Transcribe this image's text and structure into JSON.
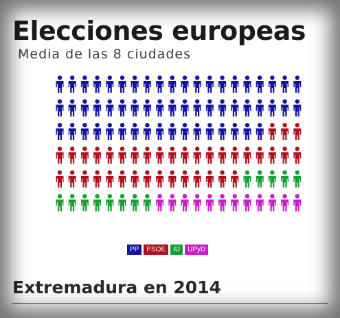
{
  "header": {
    "title": "Elecciones europeas",
    "subtitle": "Media de las 8 ciudades"
  },
  "footer": {
    "title": "Extremadura en 2014"
  },
  "chart_data": {
    "type": "pictogram",
    "grid": {
      "rows": 6,
      "cols": 20
    },
    "series": [
      {
        "name": "PP",
        "count": 57,
        "color": "#1414a0"
      },
      {
        "name": "PSOE",
        "count": 38,
        "color": "#b0101c"
      },
      {
        "name": "IU",
        "count": 13,
        "color": "#16a034"
      },
      {
        "name": "UPyD",
        "count": 12,
        "color": "#c51fc5"
      }
    ]
  }
}
